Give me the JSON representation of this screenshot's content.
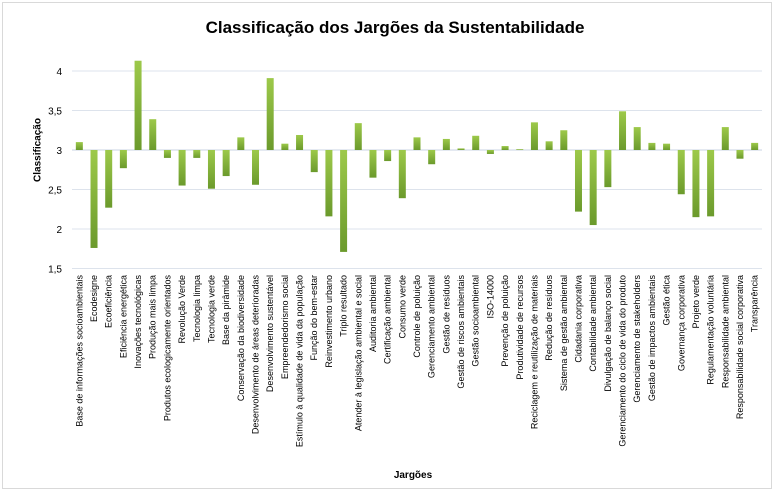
{
  "chart_data": {
    "type": "bar",
    "title": "Classificação dos Jargões da Sustentabilidade",
    "xlabel": "Jargões",
    "ylabel": "Classificação",
    "ylim": [
      1.5,
      4.25
    ],
    "baseline": 3,
    "yticks": [
      "1,5",
      "2",
      "2,5",
      "3",
      "3,5",
      "4"
    ],
    "ytick_values": [
      1.5,
      2,
      2.5,
      3,
      3.5,
      4
    ],
    "grid": true,
    "bar_color": "#8dba3f",
    "categories": [
      "Base de informações socioambientais",
      "Ecodesigne",
      "Ecoeficiência",
      "Eficiência energética",
      "Inovações tecnológicas",
      "Produção mais limpa",
      "Produtos ecologicamente orientados",
      "Revolução Verde",
      "Tecnologia limpa",
      "Tecnologia verde",
      "Base da pirâmide",
      "Conservação da biodiversidade",
      "Desenvolvimento de áreas deterioradas",
      "Desenvolvimento sustentável",
      "Empreendedorismo social",
      "Estímulo à qualidade de vida da população",
      "Função do bem-estar",
      "Reinvestimento urbano",
      "Triplo resultado",
      "Atender à legislação ambiental e social",
      "Auditoria ambiental",
      "Certificação ambiental",
      "Consumo verde",
      "Controle de poluição",
      "Gerenciamento ambiental",
      "Gestão de resíduos",
      "Gestão de riscos ambientais",
      "Gestão socioambiental",
      "ISO-14000",
      "Prevenção de poluição",
      "Produtividade de recursos",
      "Reciclagem e reutilização de materiais",
      "Redução de resíduos",
      "Sistema de gestão ambiental",
      "Cidadania corporativa",
      "Contabilidade ambiental",
      "Divulgação de balanço social",
      "Gerenciamento do ciclo de vida do produto",
      "Gerenciamento de stakeholders",
      "Gestão de impactos ambientais",
      "Gestão ética",
      "Governança corporativa",
      "Projeto verde",
      "Regulamentação voluntária",
      "Responsabilidade ambiental",
      "Responsabilidade social corporativa",
      "Transparência"
    ],
    "values": [
      3.1,
      1.76,
      2.27,
      2.77,
      4.13,
      3.39,
      2.9,
      2.55,
      2.9,
      2.51,
      2.67,
      3.16,
      2.56,
      3.91,
      3.08,
      3.19,
      2.72,
      2.16,
      1.71,
      3.34,
      2.65,
      2.86,
      2.39,
      3.16,
      2.82,
      3.14,
      3.02,
      3.18,
      2.95,
      3.05,
      3.01,
      3.35,
      3.11,
      3.25,
      2.22,
      2.05,
      2.53,
      3.49,
      3.29,
      3.09,
      3.08,
      2.44,
      2.15,
      2.16,
      3.29,
      2.89,
      3.09
    ]
  }
}
